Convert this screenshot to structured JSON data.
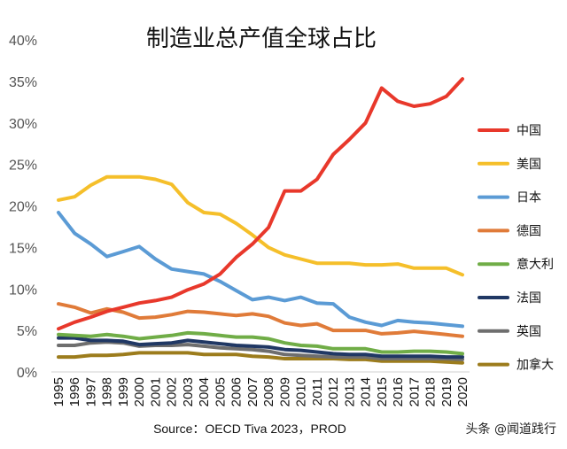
{
  "chart_data": {
    "type": "line",
    "title": "制造业总产值全球占比",
    "ylim": [
      0,
      40
    ],
    "y_ticks": [
      "0%",
      "5%",
      "10%",
      "15%",
      "20%",
      "25%",
      "30%",
      "35%",
      "40%"
    ],
    "grid": false,
    "legend_position": "right",
    "x": [
      "1995",
      "1996",
      "1997",
      "1998",
      "1999",
      "2000",
      "2001",
      "2002",
      "2003",
      "2004",
      "2005",
      "2006",
      "2007",
      "2008",
      "2009",
      "2010",
      "2011",
      "2012",
      "2013",
      "2014",
      "2015",
      "2016",
      "2017",
      "2018",
      "2019",
      "2020"
    ],
    "series": [
      {
        "name": "中国",
        "color": "#e8382b",
        "values": [
          5.2,
          6.0,
          6.6,
          7.3,
          7.8,
          8.3,
          8.6,
          9.0,
          9.9,
          10.6,
          11.8,
          13.8,
          15.4,
          17.4,
          21.8,
          21.8,
          23.2,
          26.2,
          28.0,
          30.0,
          34.2,
          32.6,
          32.0,
          32.3,
          33.2,
          35.3
        ]
      },
      {
        "name": "美国",
        "color": "#f5bf2a",
        "values": [
          20.7,
          21.1,
          22.5,
          23.5,
          23.5,
          23.5,
          23.2,
          22.6,
          20.4,
          19.2,
          19.0,
          17.9,
          16.5,
          15.0,
          14.1,
          13.6,
          13.1,
          13.1,
          13.1,
          12.9,
          12.9,
          13.0,
          12.5,
          12.5,
          12.5,
          11.7
        ]
      },
      {
        "name": "日本",
        "color": "#5b9bd5",
        "values": [
          19.2,
          16.7,
          15.4,
          13.9,
          14.5,
          15.1,
          13.6,
          12.4,
          12.1,
          11.8,
          10.9,
          9.8,
          8.7,
          9.0,
          8.6,
          9.0,
          8.3,
          8.2,
          6.6,
          6.0,
          5.6,
          6.2,
          6.0,
          5.9,
          5.7,
          5.5
        ]
      },
      {
        "name": "德国",
        "color": "#e07b39",
        "values": [
          8.2,
          7.8,
          7.1,
          7.6,
          7.2,
          6.5,
          6.6,
          6.9,
          7.3,
          7.2,
          7.0,
          6.8,
          7.0,
          6.7,
          5.9,
          5.6,
          5.8,
          5.0,
          5.0,
          5.0,
          4.6,
          4.7,
          4.9,
          4.7,
          4.5,
          4.3
        ]
      },
      {
        "name": "意大利",
        "color": "#70ad47",
        "values": [
          4.5,
          4.4,
          4.3,
          4.5,
          4.3,
          4.0,
          4.2,
          4.4,
          4.7,
          4.6,
          4.4,
          4.2,
          4.2,
          4.0,
          3.5,
          3.2,
          3.1,
          2.8,
          2.8,
          2.8,
          2.4,
          2.4,
          2.5,
          2.5,
          2.4,
          2.2
        ]
      },
      {
        "name": "法国",
        "color": "#203864",
        "values": [
          4.1,
          4.1,
          3.8,
          3.8,
          3.7,
          3.3,
          3.4,
          3.5,
          3.8,
          3.6,
          3.4,
          3.2,
          3.1,
          3.0,
          2.7,
          2.6,
          2.4,
          2.2,
          2.1,
          2.1,
          1.9,
          1.9,
          1.9,
          1.9,
          1.8,
          1.8
        ]
      },
      {
        "name": "英国",
        "color": "#6e6e6e",
        "values": [
          3.2,
          3.2,
          3.5,
          3.6,
          3.5,
          3.1,
          3.2,
          3.2,
          3.3,
          3.1,
          2.9,
          2.8,
          2.7,
          2.5,
          2.1,
          2.0,
          1.9,
          1.8,
          1.8,
          1.8,
          1.6,
          1.6,
          1.6,
          1.6,
          1.6,
          1.5
        ]
      },
      {
        "name": "加拿大",
        "color": "#9c7c1c",
        "values": [
          1.8,
          1.8,
          2.0,
          2.0,
          2.1,
          2.3,
          2.3,
          2.3,
          2.3,
          2.1,
          2.1,
          2.1,
          1.9,
          1.8,
          1.6,
          1.6,
          1.6,
          1.6,
          1.5,
          1.5,
          1.3,
          1.3,
          1.3,
          1.3,
          1.2,
          1.1
        ]
      }
    ],
    "source": "Source：OECD Tiva 2023，PROD"
  },
  "watermark": "头条 @闻道践行"
}
